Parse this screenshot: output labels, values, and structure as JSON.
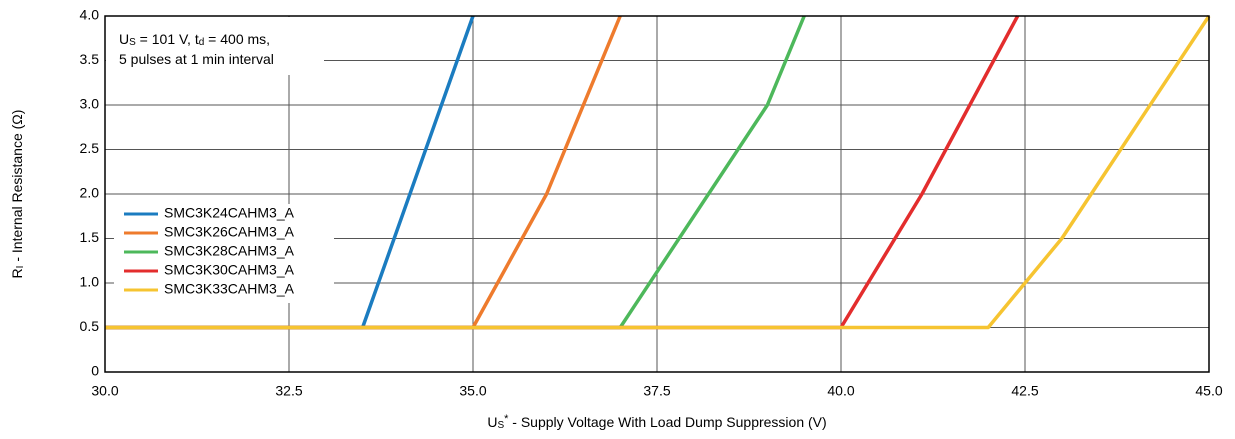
{
  "chart_data": {
    "type": "line",
    "x_label": [
      {
        "text": "U"
      },
      {
        "text": "S",
        "script": "sub"
      },
      {
        "text": "*",
        "script": "super"
      },
      {
        "text": " - Supply Voltage With Load Dump Suppression (V)"
      }
    ],
    "y_label": [
      {
        "text": "R"
      },
      {
        "text": "I",
        "script": "sub"
      },
      {
        "text": " - Internal Resistance (Ω)"
      }
    ],
    "annotation": [
      [
        {
          "text": "U"
        },
        {
          "text": "S",
          "script": "sub"
        },
        {
          "text": " = 101 V, t"
        },
        {
          "text": "d",
          "script": "sub"
        },
        {
          "text": " = 400 ms,"
        }
      ],
      [
        {
          "text": "5 pulses at 1 min interval"
        }
      ]
    ],
    "xlim": [
      30,
      45
    ],
    "xticks": [
      {
        "value": 30,
        "label": "30.0"
      },
      32.5,
      {
        "value": 35,
        "label": "35.0"
      },
      37.5,
      {
        "value": 40,
        "label": "40.0"
      },
      42.5,
      {
        "value": 45,
        "label": "45.0"
      }
    ],
    "ylim": [
      0,
      4
    ],
    "yticks": [
      0,
      0.5,
      {
        "value": 1,
        "label": "1.0"
      },
      1.5,
      {
        "value": 2,
        "label": "2.0"
      },
      2.5,
      {
        "value": 3,
        "label": "3.0"
      },
      3.5,
      {
        "value": 4,
        "label": "4.0"
      }
    ],
    "grid": true,
    "legend": "left",
    "series": [
      {
        "name": "SMC3K24CAHM3_A",
        "color": "#1b7cc0",
        "x": [
          30,
          33.5,
          35
        ],
        "values": [
          0.5,
          0.5,
          4
        ]
      },
      {
        "name": "SMC3K26CAHM3_A",
        "color": "#ee7b2d",
        "x": [
          30,
          35,
          36,
          37
        ],
        "values": [
          0.5,
          0.5,
          2,
          4
        ]
      },
      {
        "name": "SMC3K28CAHM3_A",
        "color": "#4db85b",
        "x": [
          30,
          37,
          39,
          39.5
        ],
        "values": [
          0.5,
          0.5,
          3,
          4
        ]
      },
      {
        "name": "SMC3K30CAHM3_A",
        "color": "#e32d2d",
        "x": [
          30,
          40,
          41.1,
          42.4
        ],
        "values": [
          0.5,
          0.5,
          2,
          4
        ]
      },
      {
        "name": "SMC3K33CAHM3_A",
        "color": "#f6c431",
        "x": [
          30,
          42,
          43,
          45
        ],
        "values": [
          0.5,
          0.5,
          1.5,
          4
        ]
      }
    ]
  }
}
